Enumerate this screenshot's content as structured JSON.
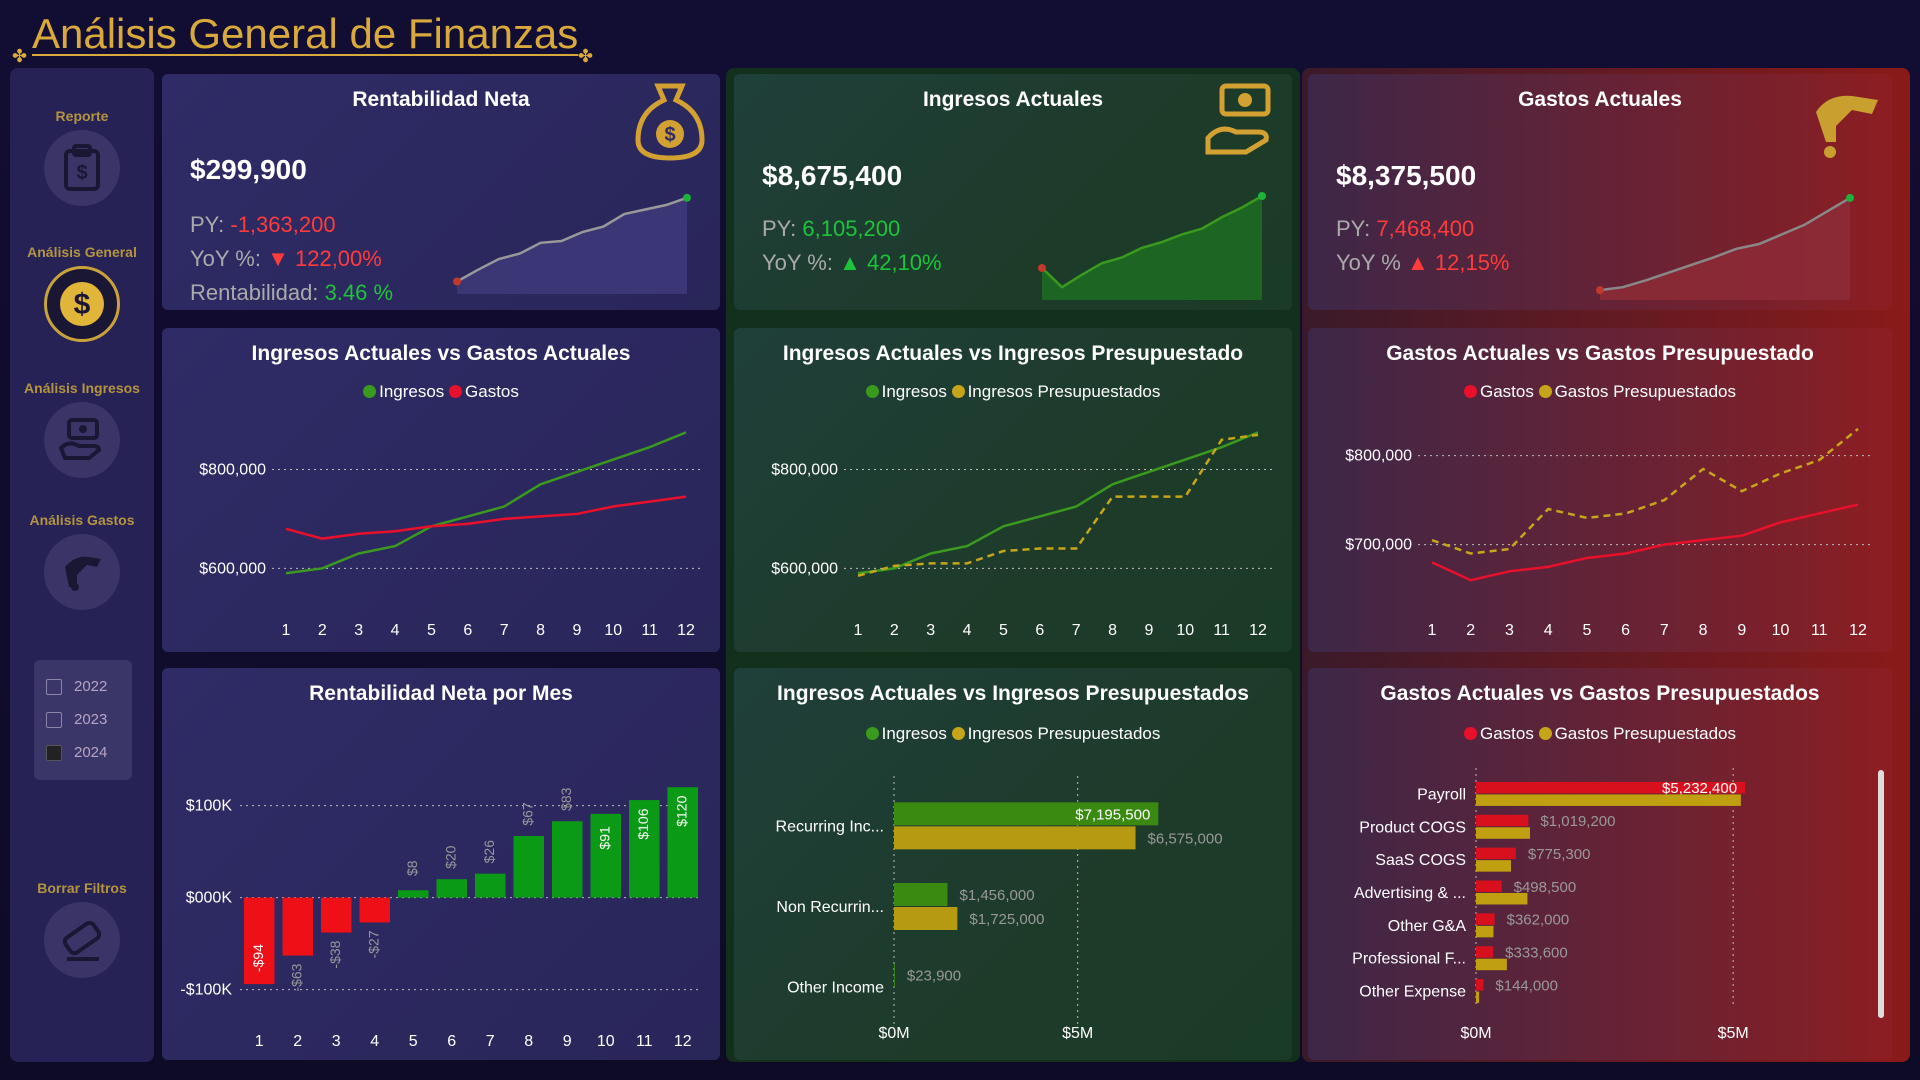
{
  "header": {
    "title": "Análisis General de Finanzas"
  },
  "sidebar": {
    "items": [
      {
        "label": "Reporte",
        "icon": "clipboard-dollar-icon"
      },
      {
        "label": "Análisis General",
        "icon": "dollar-coin-icon",
        "active": true
      },
      {
        "label": "Análisis Ingresos",
        "icon": "hand-money-icon"
      },
      {
        "label": "Análisis Gastos",
        "icon": "hand-coin-icon"
      }
    ],
    "years": [
      {
        "label": "2022",
        "checked": false
      },
      {
        "label": "2023",
        "checked": false
      },
      {
        "label": "2024",
        "checked": true
      }
    ],
    "clear_filters": {
      "label": "Borrar Filtros",
      "icon": "eraser-icon"
    }
  },
  "kpis": {
    "rentabilidad": {
      "title": "Rentabilidad Neta",
      "value": "$299,900",
      "py_label": "PY:",
      "py_value": "-1,363,200",
      "yoy_label": "YoY %:",
      "yoy_arrow": "▼",
      "yoy_value": "122,00%",
      "extra_label": "Rentabilidad:",
      "extra_value": "3.46 %",
      "sparkline": [
        0.05,
        0.18,
        0.3,
        0.36,
        0.48,
        0.5,
        0.6,
        0.66,
        0.8,
        0.85,
        0.9,
        0.98
      ]
    },
    "ingresos": {
      "title": "Ingresos Actuales",
      "value": "$8,675,400",
      "py_label": "PY:",
      "py_value": "6,105,200",
      "yoy_label": "YoY %:",
      "yoy_arrow": "▲",
      "yoy_value": "42,10%",
      "sparkline": [
        0.25,
        0.05,
        0.18,
        0.3,
        0.36,
        0.46,
        0.52,
        0.6,
        0.66,
        0.78,
        0.88,
        1.0
      ]
    },
    "gastos": {
      "title": "Gastos Actuales",
      "value": "$8,375,500",
      "py_label": "PY:",
      "py_value": "7,468,400",
      "yoy_label": "YoY %",
      "yoy_arrow": "▲",
      "yoy_value": "12,15%",
      "sparkline": [
        0.02,
        0.05,
        0.12,
        0.2,
        0.28,
        0.36,
        0.45,
        0.5,
        0.6,
        0.7,
        0.84,
        0.98
      ]
    }
  },
  "chart_data": [
    {
      "type": "line",
      "title": "Ingresos Actuales vs Gastos Actuales",
      "categories": [
        "1",
        "2",
        "3",
        "4",
        "5",
        "6",
        "7",
        "8",
        "9",
        "10",
        "11",
        "12"
      ],
      "series": [
        {
          "name": "Ingresos",
          "color": "#3a9a1e",
          "values": [
            590000,
            600000,
            630000,
            645000,
            685000,
            705000,
            725000,
            770000,
            795000,
            820000,
            845000,
            875000
          ]
        },
        {
          "name": "Gastos",
          "color": "#e8102a",
          "values": [
            680000,
            660000,
            670000,
            675000,
            685000,
            690000,
            700000,
            705000,
            710000,
            725000,
            735000,
            745000
          ]
        }
      ],
      "yticks": [
        "$600,000",
        "$800,000"
      ],
      "ytick_values": [
        600000,
        800000
      ],
      "ylim": [
        540000,
        900000
      ]
    },
    {
      "type": "line",
      "title": "Ingresos Actuales vs Ingresos Presupuestado",
      "categories": [
        "1",
        "2",
        "3",
        "4",
        "5",
        "6",
        "7",
        "8",
        "9",
        "10",
        "11",
        "12"
      ],
      "series": [
        {
          "name": "Ingresos",
          "color": "#3a9a1e",
          "values": [
            590000,
            600000,
            630000,
            645000,
            685000,
            705000,
            725000,
            770000,
            795000,
            820000,
            845000,
            875000
          ]
        },
        {
          "name": "Ingresos Presupuestados",
          "color": "#c6a51b",
          "dashed": true,
          "values": [
            585000,
            605000,
            610000,
            610000,
            635000,
            640000,
            640000,
            745000,
            745000,
            745000,
            860000,
            870000
          ]
        }
      ],
      "yticks": [
        "$600,000",
        "$800,000"
      ],
      "ytick_values": [
        600000,
        800000
      ],
      "ylim": [
        540000,
        900000
      ]
    },
    {
      "type": "line",
      "title": "Gastos Actuales vs Gastos Presupuestado",
      "categories": [
        "1",
        "2",
        "3",
        "4",
        "5",
        "6",
        "7",
        "8",
        "9",
        "10",
        "11",
        "12"
      ],
      "series": [
        {
          "name": "Gastos",
          "color": "#e8102a",
          "values": [
            680000,
            660000,
            670000,
            675000,
            685000,
            690000,
            700000,
            705000,
            710000,
            725000,
            735000,
            745000
          ]
        },
        {
          "name": "Gastos Presupuestados",
          "color": "#c6a51b",
          "dashed": true,
          "values": [
            705000,
            690000,
            695000,
            740000,
            730000,
            735000,
            750000,
            785000,
            760000,
            780000,
            795000,
            830000
          ]
        }
      ],
      "yticks": [
        "$700,000",
        "$800,000"
      ],
      "ytick_values": [
        700000,
        800000
      ],
      "ylim": [
        640000,
        840000
      ]
    },
    {
      "type": "bar",
      "title": "Rentabilidad Neta por Mes",
      "categories": [
        "1",
        "2",
        "3",
        "4",
        "5",
        "6",
        "7",
        "8",
        "9",
        "10",
        "11",
        "12"
      ],
      "values": [
        -94,
        -63,
        -38,
        -27,
        8,
        20,
        26,
        67,
        83,
        91,
        106,
        120
      ],
      "labels": [
        "-$94",
        "-$63",
        "-$38",
        "-$27",
        "$8",
        "$20",
        "$26",
        "$67",
        "$83",
        "$91",
        "$106",
        "$120"
      ],
      "yticks": [
        "$100K",
        "$000K",
        "-$100K"
      ],
      "ytick_values": [
        100,
        0,
        -100
      ],
      "ylim": [
        -120,
        130
      ],
      "unit": "K"
    },
    {
      "type": "bar",
      "orientation": "horizontal",
      "title": "Ingresos Actuales vs Ingresos Presupuestados",
      "categories": [
        "Recurring Inc...",
        "Non Recurrin...",
        "Other Income"
      ],
      "series": [
        {
          "name": "Ingresos",
          "color": "#3a8a12",
          "values": [
            7195500,
            1456000,
            23900
          ],
          "labels": [
            "$7,195,500",
            "$1,456,000",
            "$23,900"
          ]
        },
        {
          "name": "Ingresos Presupuestados",
          "color": "#b59a12",
          "values": [
            6575000,
            1725000,
            0
          ],
          "labels": [
            "$6,575,000",
            "$1,725,000",
            ""
          ]
        }
      ],
      "xticks": [
        "$0M",
        "$5M"
      ],
      "xtick_values": [
        0,
        5000000
      ],
      "xlim": [
        0,
        9800000
      ]
    },
    {
      "type": "bar",
      "orientation": "horizontal",
      "title": "Gastos Actuales vs Gastos Presupuestados",
      "categories": [
        "Payroll",
        "Product COGS",
        "SaaS COGS",
        "Advertising & ...",
        "Other G&A",
        "Professional F...",
        "Other Expense"
      ],
      "series": [
        {
          "name": "Gastos",
          "color": "#d8101e",
          "values": [
            5232400,
            1019200,
            775300,
            498500,
            362000,
            333600,
            144000
          ],
          "labels": [
            "$5,232,400",
            "$1,019,200",
            "$775,300",
            "$498,500",
            "$362,000",
            "$333,600",
            "$144,000"
          ]
        },
        {
          "name": "Gastos Presupuestados",
          "color": "#c0a010",
          "values": [
            5150000,
            1050000,
            680000,
            1000000,
            340000,
            600000,
            60000
          ],
          "labels": [
            "",
            "",
            "",
            "",
            "",
            "",
            ""
          ]
        }
      ],
      "xticks": [
        "$0M",
        "$5M"
      ],
      "xtick_values": [
        0,
        5000000
      ],
      "xlim": [
        0,
        7000000
      ]
    }
  ]
}
